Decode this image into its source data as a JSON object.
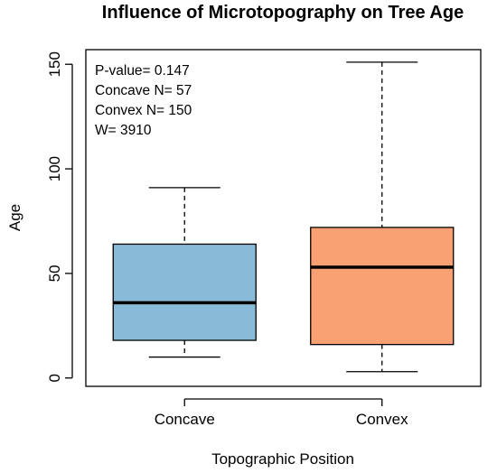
{
  "chart_data": {
    "type": "boxplot",
    "title": "Influence of Microtopography on Tree Age",
    "xlabel": "Topographic Position",
    "ylabel": "Age",
    "ylim": [
      -4,
      157
    ],
    "yticks": [
      0,
      50,
      100,
      150
    ],
    "grid": false,
    "categories": [
      "Concave",
      "Convex"
    ],
    "boxes": [
      {
        "name": "Concave",
        "whisker_low": 10,
        "q1": 18,
        "median": 36,
        "q3": 64,
        "whisker_high": 91,
        "color": "#89BBD9"
      },
      {
        "name": "Convex",
        "whisker_low": 3,
        "q1": 16,
        "median": 53,
        "q3": 72,
        "whisker_high": 151,
        "color": "#F9A173"
      }
    ],
    "annotations": [
      "P-value= 0.147",
      "Concave N= 57",
      "Convex N= 150",
      "W= 3910"
    ]
  }
}
